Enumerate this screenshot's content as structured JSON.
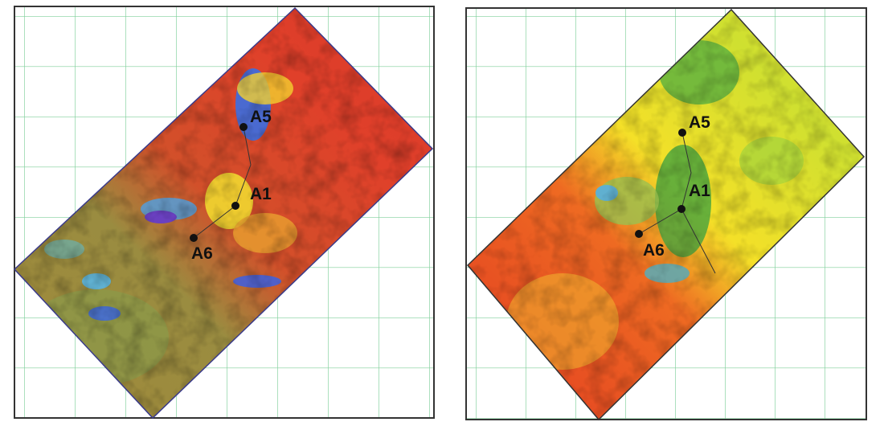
{
  "panels": [
    {
      "wells": [
        {
          "label": "A5"
        },
        {
          "label": "A1"
        },
        {
          "label": "A6"
        }
      ]
    },
    {
      "wells": [
        {
          "label": "A5"
        },
        {
          "label": "A1"
        },
        {
          "label": "A6"
        }
      ]
    }
  ]
}
